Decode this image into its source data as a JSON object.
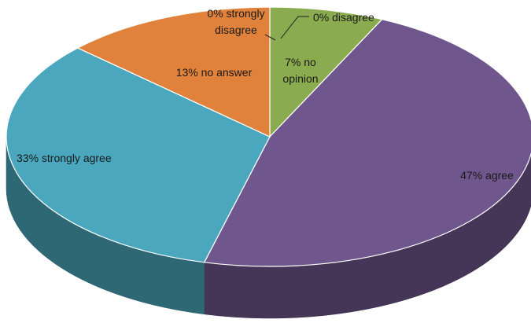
{
  "chart_data": {
    "type": "pie",
    "style": "3d-tilted",
    "title": "",
    "legend": "none",
    "slices": [
      {
        "id": "strongly-disagree",
        "value": 0,
        "label_lines": [
          "0% strongly",
          "disagree"
        ],
        "color": "#a9a9a9"
      },
      {
        "id": "disagree",
        "value": 0,
        "label_lines": [
          "0% disagree"
        ],
        "color": "#c0504d"
      },
      {
        "id": "no-opinion",
        "value": 7,
        "label_lines": [
          "7% no",
          "opinion"
        ],
        "color": "#8aab4f"
      },
      {
        "id": "agree",
        "value": 47,
        "label_lines": [
          "47% agree"
        ],
        "color": "#6f568d"
      },
      {
        "id": "strongly-agree",
        "value": 33,
        "label_lines": [
          "33% strongly agree"
        ],
        "color": "#4aa7bd"
      },
      {
        "id": "no-answer",
        "value": 13,
        "label_lines": [
          "13% no answer"
        ],
        "color": "#e0823c"
      }
    ]
  }
}
